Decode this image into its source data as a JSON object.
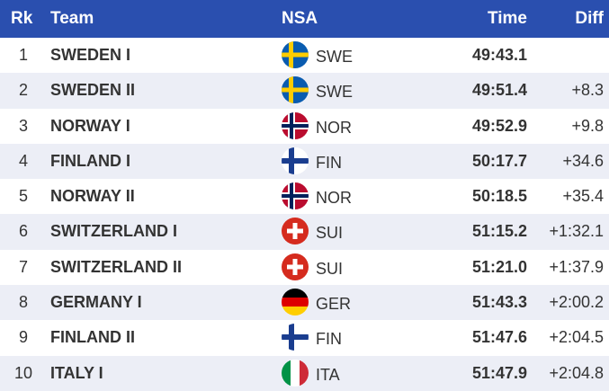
{
  "header": {
    "rk": "Rk",
    "team": "Team",
    "nsa": "NSA",
    "time": "Time",
    "diff": "Diff"
  },
  "colors": {
    "header_bg": "#2a4faf",
    "row_alt": "#eceef6"
  },
  "rows": [
    {
      "rk": "1",
      "team": "SWEDEN I",
      "flag": "swe-flag-icon",
      "nsa": "SWE",
      "time": "49:43.1",
      "diff": ""
    },
    {
      "rk": "2",
      "team": "SWEDEN II",
      "flag": "swe-flag-icon",
      "nsa": "SWE",
      "time": "49:51.4",
      "diff": "+8.3"
    },
    {
      "rk": "3",
      "team": "NORWAY I",
      "flag": "nor-flag-icon",
      "nsa": "NOR",
      "time": "49:52.9",
      "diff": "+9.8"
    },
    {
      "rk": "4",
      "team": "FINLAND I",
      "flag": "fin-flag-icon",
      "nsa": "FIN",
      "time": "50:17.7",
      "diff": "+34.6"
    },
    {
      "rk": "5",
      "team": "NORWAY II",
      "flag": "nor-flag-icon",
      "nsa": "NOR",
      "time": "50:18.5",
      "diff": "+35.4"
    },
    {
      "rk": "6",
      "team": "SWITZERLAND I",
      "flag": "sui-flag-icon",
      "nsa": "SUI",
      "time": "51:15.2",
      "diff": "+1:32.1"
    },
    {
      "rk": "7",
      "team": "SWITZERLAND II",
      "flag": "sui-flag-icon",
      "nsa": "SUI",
      "time": "51:21.0",
      "diff": "+1:37.9"
    },
    {
      "rk": "8",
      "team": "GERMANY I",
      "flag": "ger-flag-icon",
      "nsa": "GER",
      "time": "51:43.3",
      "diff": "+2:00.2"
    },
    {
      "rk": "9",
      "team": "FINLAND II",
      "flag": "fin-flag-icon",
      "nsa": "FIN",
      "time": "51:47.6",
      "diff": "+2:04.5"
    },
    {
      "rk": "10",
      "team": "ITALY I",
      "flag": "ita-flag-icon",
      "nsa": "ITA",
      "time": "51:47.9",
      "diff": "+2:04.8"
    }
  ]
}
